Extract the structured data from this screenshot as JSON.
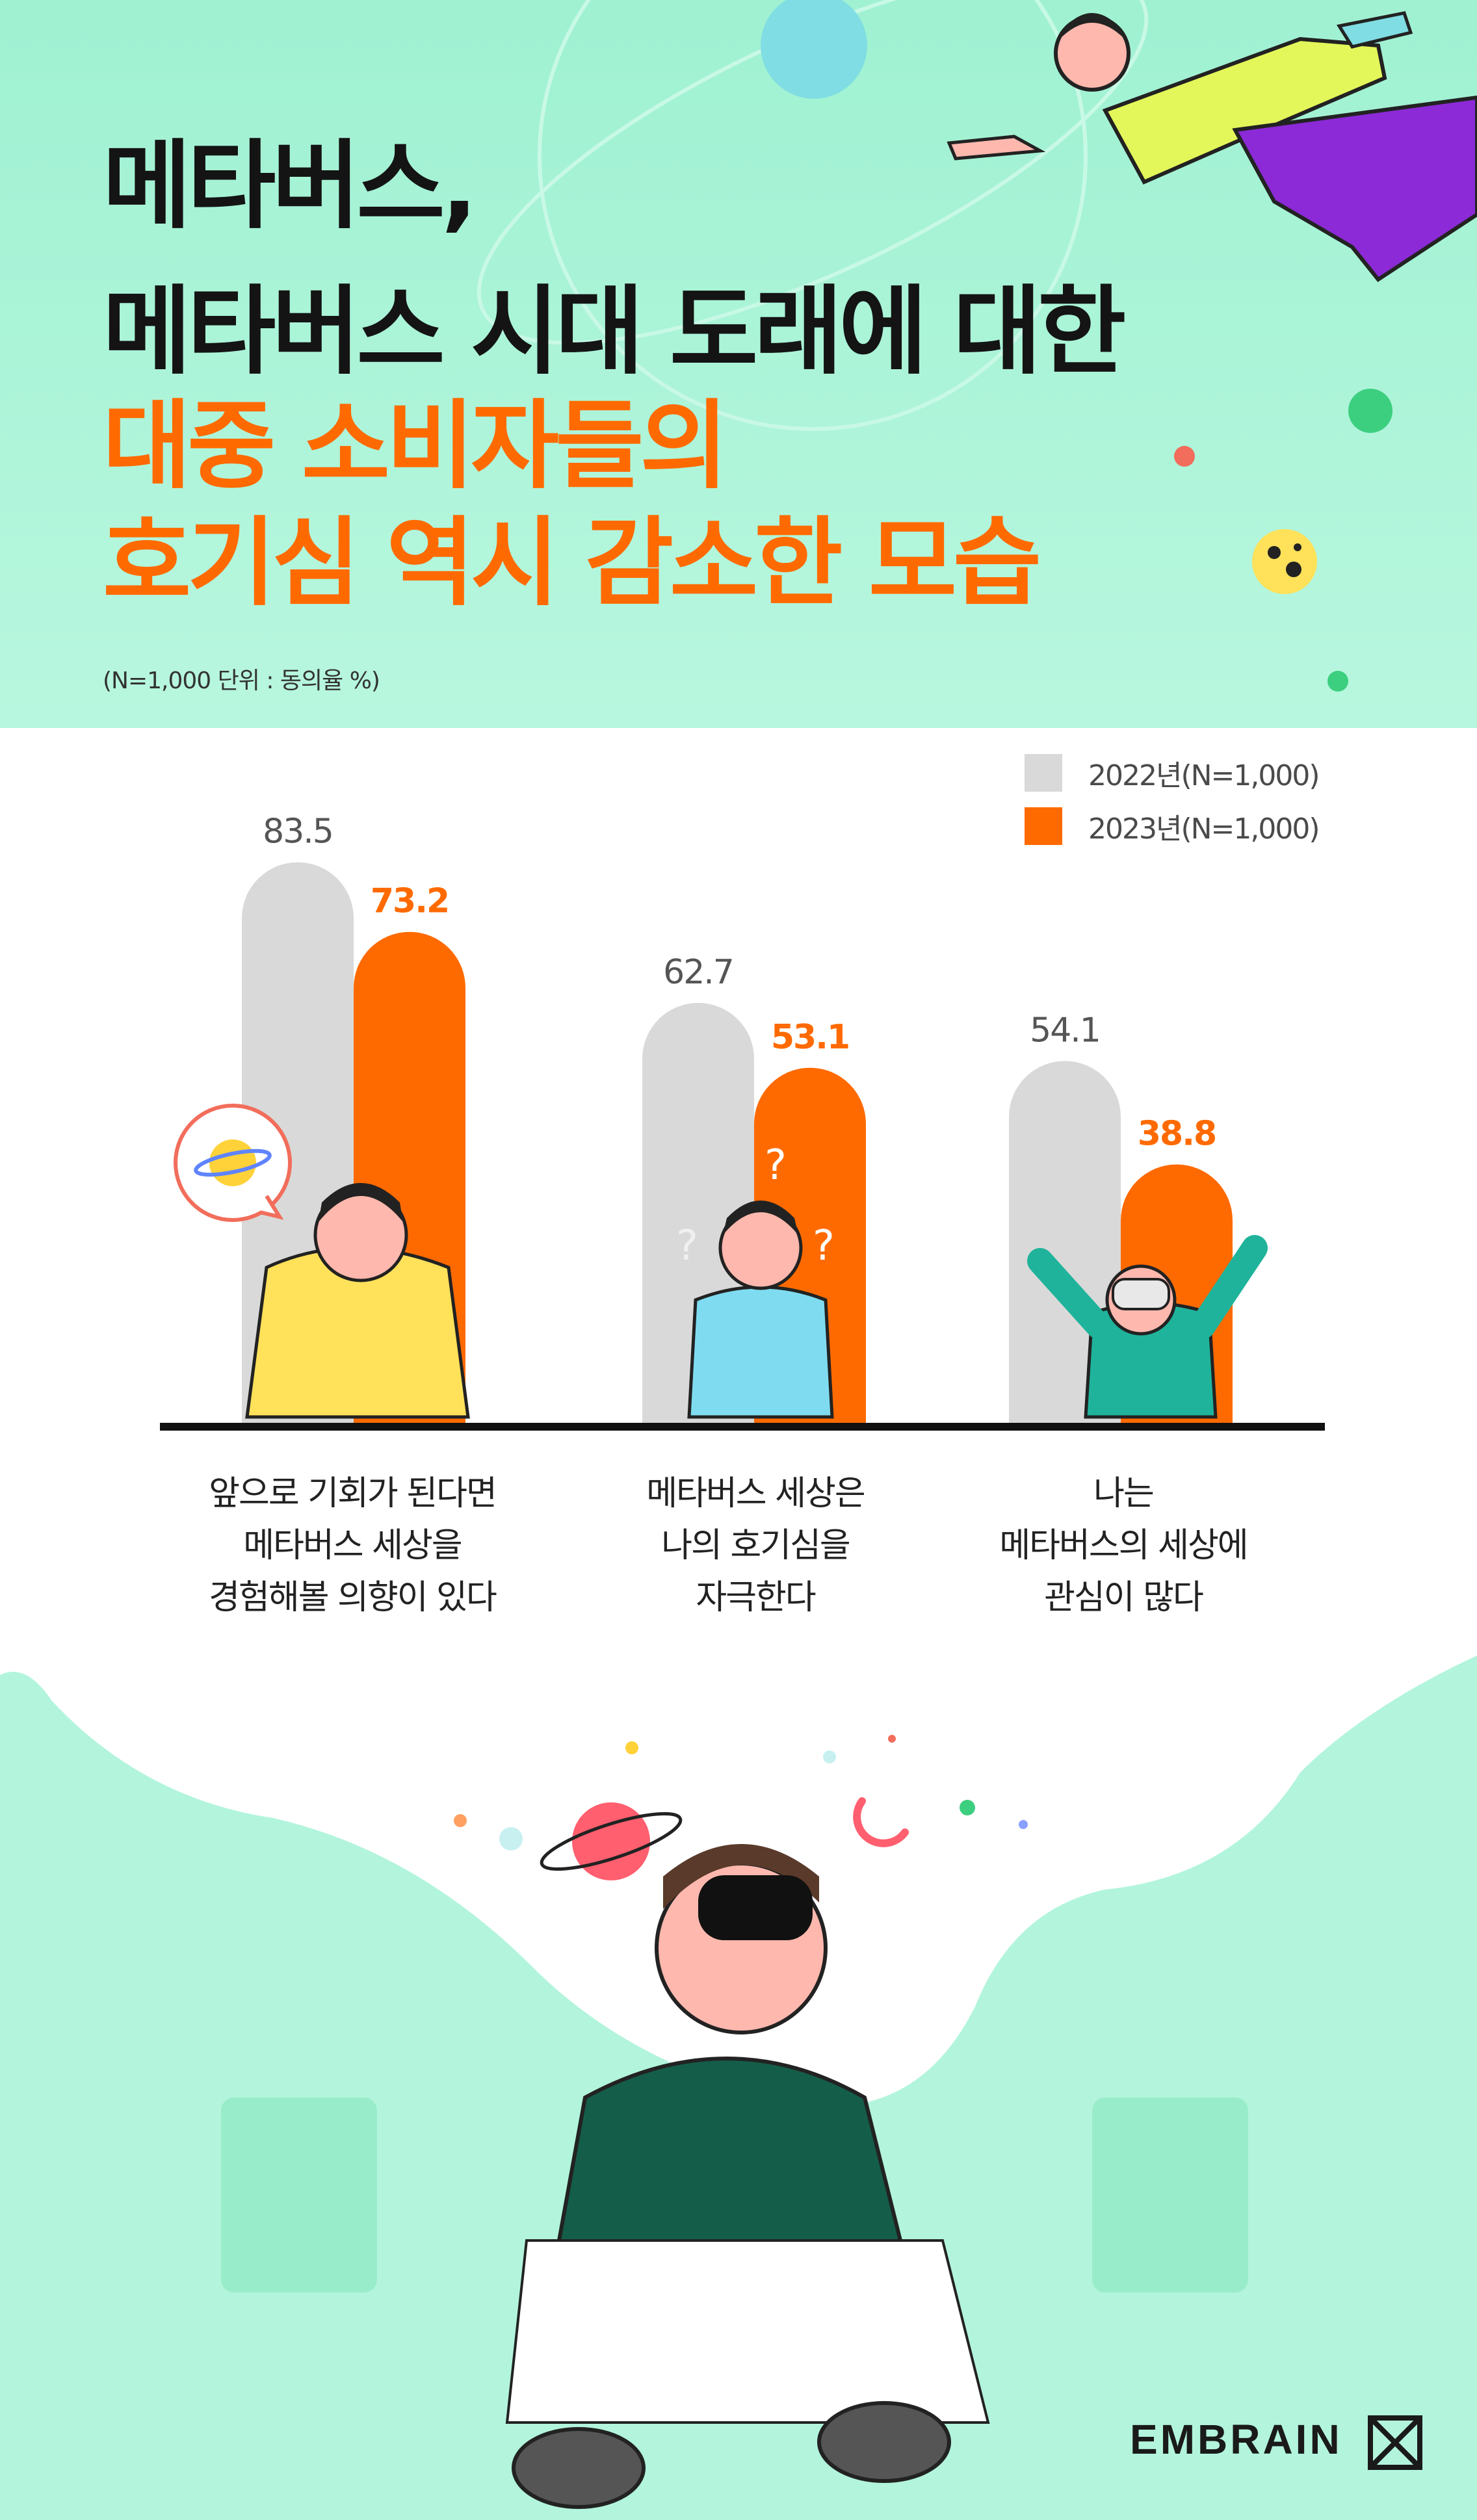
{
  "header": {
    "title_lines": [
      "메타버스,",
      "메타버스 시대 도래에 대한"
    ],
    "highlight_lines": [
      "대중 소비자들의",
      "호기심 역시 감소한 모습"
    ],
    "subtitle": "(N=1,000 단위 : 동의율 %)"
  },
  "colors": {
    "bg_mint": "#b2f5dc",
    "title_dark": "#141414",
    "accent_orange": "#ff6a00",
    "bar_gray": "#d9d9d9",
    "axis": "#111111"
  },
  "chart_data": {
    "type": "bar",
    "categories": [
      "앞으로 기회가 된다면 메타버스 세상을 경험해볼 의향이 있다",
      "메타버스 세상은 나의 호기심을 자극한다",
      "나는 메타버스의 세상에 관심이 많다"
    ],
    "category_lines": [
      [
        "앞으로 기회가 된다면",
        "메타버스 세상을",
        "경험해볼 의향이 있다"
      ],
      [
        "메타버스 세상은",
        "나의 호기심을",
        "자극한다"
      ],
      [
        "나는",
        "메타버스의 세상에",
        "관심이 많다"
      ]
    ],
    "series": [
      {
        "name": "2022년(N=1,000)",
        "values": [
          83.5,
          62.7,
          54.1
        ],
        "color": "#d9d9d9",
        "label_color": "#555555"
      },
      {
        "name": "2023년(N=1,000)",
        "values": [
          73.2,
          53.1,
          38.8
        ],
        "color": "#ff6a00",
        "label_color": "#ff6a00"
      }
    ],
    "ylim": [
      0,
      100
    ],
    "legend": "top-right",
    "grid": false
  },
  "footer": {
    "brand": "EMBRAIN"
  }
}
